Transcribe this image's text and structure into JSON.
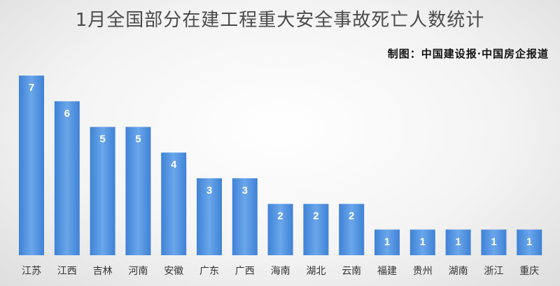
{
  "chart_data": {
    "type": "bar",
    "title": "1月全国部分在建工程重大安全事故死亡人数统计",
    "credit": "制图：中国建设报·中国房企报道",
    "categories": [
      "江苏",
      "江西",
      "吉林",
      "河南",
      "安徽",
      "广东",
      "广西",
      "海南",
      "湖北",
      "云南",
      "福建",
      "贵州",
      "湖南",
      "浙江",
      "重庆"
    ],
    "values": [
      7,
      6,
      5,
      5,
      4,
      3,
      3,
      2,
      2,
      2,
      1,
      1,
      1,
      1,
      1
    ],
    "xlabel": "",
    "ylabel": "",
    "ylim": [
      0,
      7
    ],
    "grid": false,
    "legend": "none",
    "bar_color": "#3f82d6",
    "bar_color_light": "#6aa6ea"
  }
}
